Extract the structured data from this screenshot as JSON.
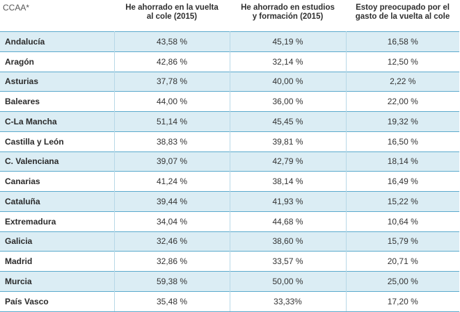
{
  "headers": {
    "region": "CCAA*",
    "col1_line1": "He ahorrado en la vuelta",
    "col1_line2": "al cole (2015)",
    "col2_line1": "He ahorrado en estudios",
    "col2_line2": "y formación (2015)",
    "col3_line1": "Estoy preocupado por el",
    "col3_line2": "gasto de la vuelta al cole"
  },
  "rows": [
    {
      "region": "Andalucía",
      "c1": "43,58 %",
      "c2": "45,19 %",
      "c3": "16,58 %"
    },
    {
      "region": "Aragón",
      "c1": "42,86 %",
      "c2": "32,14 %",
      "c3": "12,50 %"
    },
    {
      "region": "Asturias",
      "c1": "37,78 %",
      "c2": "40,00 %",
      "c3": "2,22 %"
    },
    {
      "region": "Baleares",
      "c1": "44,00 %",
      "c2": "36,00 %",
      "c3": "22,00 %"
    },
    {
      "region": "C-La Mancha",
      "c1": "51,14 %",
      "c2": "45,45 %",
      "c3": "19,32 %"
    },
    {
      "region": "Castilla y León",
      "c1": "38,83 %",
      "c2": "39,81 %",
      "c3": "16,50 %"
    },
    {
      "region": "C. Valenciana",
      "c1": "39,07 %",
      "c2": "42,79 %",
      "c3": "18,14 %"
    },
    {
      "region": "Canarias",
      "c1": "41,24 %",
      "c2": "38,14 %",
      "c3": "16,49 %"
    },
    {
      "region": "Cataluña",
      "c1": "39,44 %",
      "c2": "41,93 %",
      "c3": "15,22 %"
    },
    {
      "region": "Extremadura",
      "c1": "34,04 %",
      "c2": "44,68 %",
      "c3": "10,64 %"
    },
    {
      "region": "Galicia",
      "c1": "32,46 %",
      "c2": "38,60 %",
      "c3": "15,79 %"
    },
    {
      "region": "Madrid",
      "c1": "32,86 %",
      "c2": "33,57 %",
      "c3": "20,71 %"
    },
    {
      "region": "Murcia",
      "c1": "59,38 %",
      "c2": "50,00 %",
      "c3": "25,00 %"
    },
    {
      "region": "País Vasco",
      "c1": "35,48 %",
      "c2": "33,33%",
      "c3": "17,20 %"
    }
  ]
}
